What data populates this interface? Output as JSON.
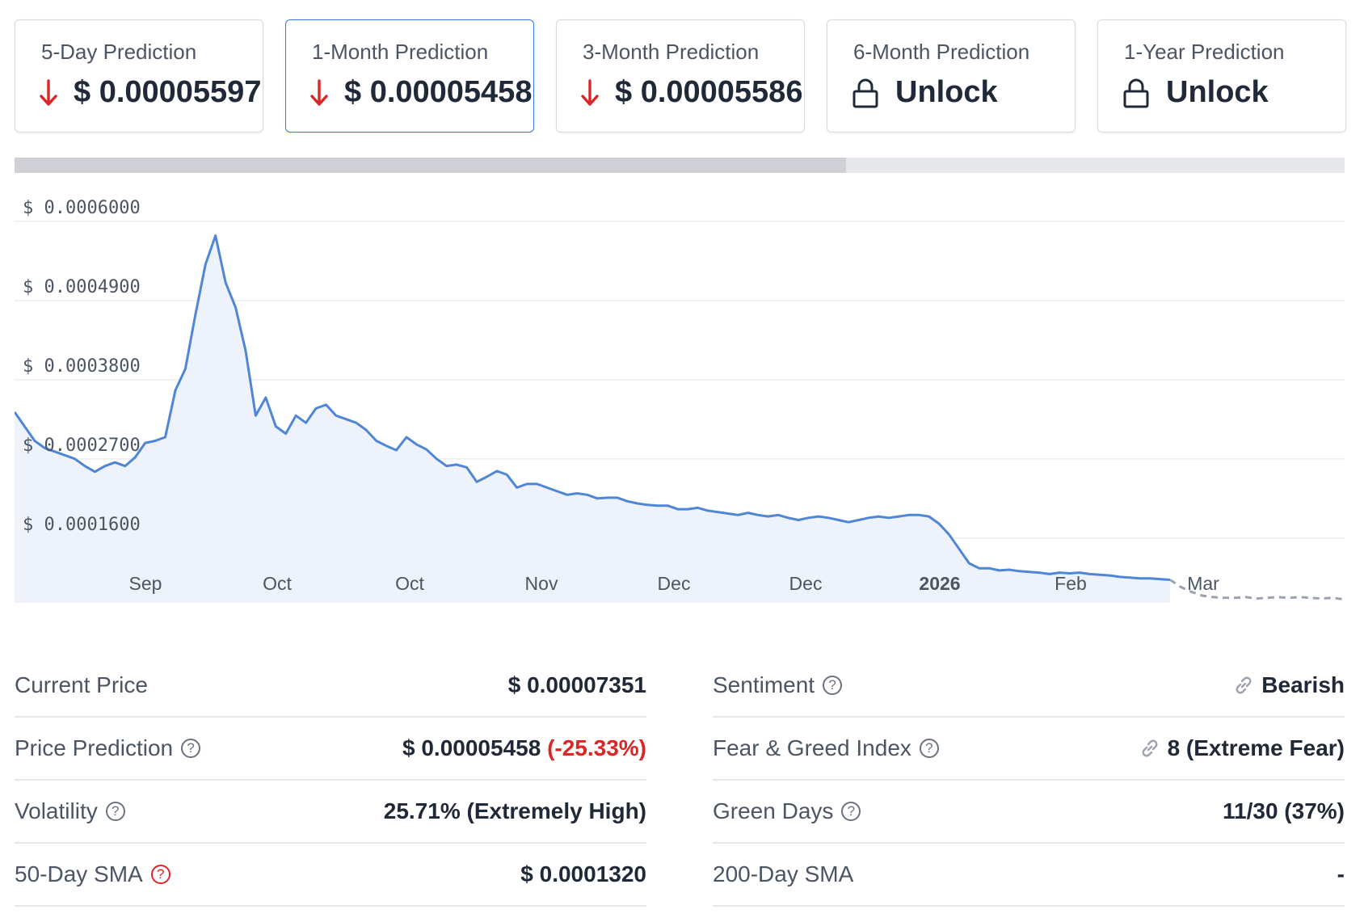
{
  "predictions": [
    {
      "label": "5-Day Prediction",
      "value": "$ 0.00005597",
      "type": "price"
    },
    {
      "label": "1-Month Prediction",
      "value": "$ 0.00005458",
      "type": "price"
    },
    {
      "label": "3-Month Prediction",
      "value": "$ 0.00005586",
      "type": "price"
    },
    {
      "label": "6-Month Prediction",
      "value": "Unlock",
      "type": "locked"
    },
    {
      "label": "1-Year Prediction",
      "value": "Unlock",
      "type": "locked"
    }
  ],
  "icons": {
    "down_arrow": "arrow-down-icon",
    "lock": "lock-icon",
    "link": "link-icon",
    "help": "question-circle-icon"
  },
  "colors": {
    "line": "#4f86d6",
    "area": "#eef3fb",
    "forecast": "#9ca3af",
    "negative": "#dc2626",
    "active_border": "#3b7bd8"
  },
  "chart_data": {
    "type": "area",
    "y_ticks": [
      "$ 0.0006000",
      "$ 0.0004900",
      "$ 0.0003800",
      "$ 0.0002700",
      "$ 0.0001600"
    ],
    "x_ticks": [
      "Sep",
      "Oct",
      "Oct",
      "Nov",
      "Dec",
      "Dec",
      "2026",
      "Feb",
      "Mar"
    ],
    "ylim": [
      5e-05,
      0.00062
    ],
    "grid": true,
    "series": [
      {
        "values": [
          0.000315,
          0.000295,
          0.000275,
          0.000265,
          0.00026,
          0.000255,
          0.00025,
          0.00024,
          0.000232,
          0.00024,
          0.000245,
          0.00024,
          0.000252,
          0.000272,
          0.000275,
          0.00028,
          0.000345,
          0.000375,
          0.00045,
          0.00052,
          0.00056,
          0.000495,
          0.00046,
          0.0004,
          0.00031,
          0.000335,
          0.000295,
          0.000285,
          0.00031,
          0.0003,
          0.00032,
          0.000325,
          0.00031,
          0.000305,
          0.0003,
          0.00029,
          0.000275,
          0.000268,
          0.000262,
          0.00028,
          0.00027,
          0.000263,
          0.00025,
          0.00024,
          0.000242,
          0.000238,
          0.000218,
          0.000225,
          0.000233,
          0.000228,
          0.00021,
          0.000215,
          0.000215,
          0.00021,
          0.000205,
          0.0002,
          0.000202,
          0.0002,
          0.000195,
          0.000196,
          0.000196,
          0.000191,
          0.000188,
          0.000186,
          0.000185,
          0.000185,
          0.00018,
          0.00018,
          0.000182,
          0.000178,
          0.000176,
          0.000174,
          0.000172,
          0.000175,
          0.000172,
          0.00017,
          0.000172,
          0.000168,
          0.000165,
          0.000168,
          0.00017,
          0.000168,
          0.000165,
          0.000162,
          0.000165,
          0.000168,
          0.00017,
          0.000168,
          0.00017,
          0.000172,
          0.000172,
          0.00017,
          0.00016,
          0.000145,
          0.000125,
          0.000105,
          9.8e-05,
          9.8e-05,
          9.5e-05,
          9.6e-05,
          9.4e-05,
          9.3e-05,
          9.2e-05,
          9e-05,
          9.2e-05,
          9.1e-05,
          9.2e-05,
          9e-05,
          8.9e-05,
          8.8e-05,
          8.6e-05,
          8.5e-05,
          8.4e-05,
          8.4e-05,
          8.3e-05,
          8.2e-05
        ]
      },
      {
        "name": "forecast",
        "values": [
          8.2e-05,
          7.2e-05,
          6.5e-05,
          6e-05,
          5.8e-05,
          5.7e-05,
          5.7e-05,
          5.8e-05,
          5.6e-05,
          5.7e-05,
          5.8e-05,
          5.7e-05,
          5.8e-05,
          5.7e-05,
          5.6e-05,
          5.7e-05,
          5.5e-05
        ]
      }
    ]
  },
  "stats_left": [
    {
      "key": "Current Price",
      "value": "$ 0.00007351",
      "help": false
    },
    {
      "key": "Price Prediction",
      "value": "$ 0.00005458",
      "extra": "(-25.33%)",
      "help": true
    },
    {
      "key": "Volatility",
      "value": "25.71% (Extremely High)",
      "help": true
    },
    {
      "key": "50-Day SMA",
      "value": "$ 0.0001320",
      "help": true
    }
  ],
  "stats_right": [
    {
      "key": "Sentiment",
      "value": "Bearish",
      "help": true
    },
    {
      "key": "Fear & Greed Index",
      "value": "8 (Extreme Fear)",
      "help": true
    },
    {
      "key": "Green Days",
      "value": "11/30 (37%)",
      "help": true
    },
    {
      "key": "200-Day SMA",
      "value": "-",
      "help": false
    }
  ]
}
